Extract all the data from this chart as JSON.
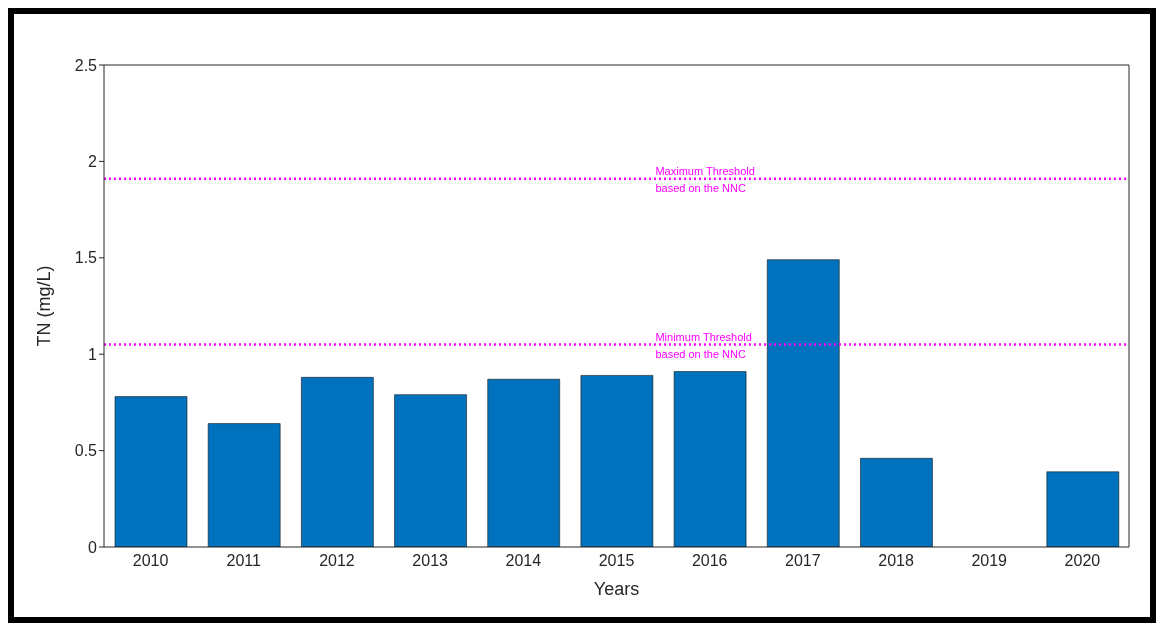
{
  "chart_data": {
    "type": "bar",
    "xlabel": "Years",
    "ylabel": "TN (mg/L)",
    "categories": [
      "2010",
      "2011",
      "2012",
      "2013",
      "2014",
      "2015",
      "2016",
      "2017",
      "2018",
      "2019",
      "2020"
    ],
    "values": [
      0.78,
      0.64,
      0.88,
      0.79,
      0.87,
      0.89,
      0.91,
      1.49,
      0.46,
      null,
      0.39
    ],
    "color": "#0072bd",
    "ylim": [
      0,
      2.5
    ],
    "yticks": [
      0,
      0.5,
      1,
      1.5,
      2,
      2.5
    ],
    "grid": false,
    "legend": false,
    "ref_lines": [
      {
        "axis": "y",
        "value": 1.91,
        "label": "Maximum Threshold based on the NNC",
        "color": "#ff00ff",
        "line_style": "dotted"
      },
      {
        "axis": "y",
        "value": 1.05,
        "label": "Minimum Threshold based on the NNC",
        "color": "#ff00ff",
        "line_style": "dotted"
      }
    ]
  }
}
